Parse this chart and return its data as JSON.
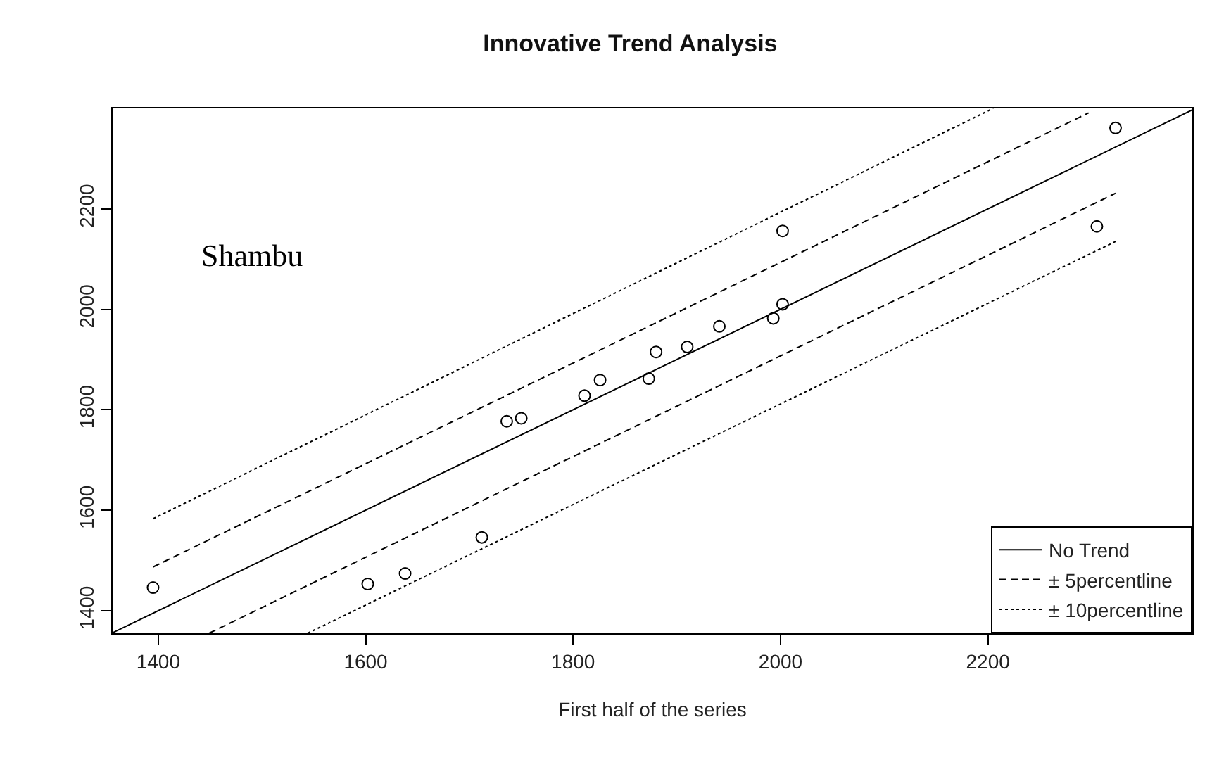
{
  "chart_data": {
    "type": "scatter",
    "title": "Innovative Trend Analysis",
    "xlabel": "First half of the series",
    "xlim": [
      1356,
      2397
    ],
    "ylim": [
      1355,
      2400
    ],
    "xticks": [
      1400,
      1600,
      1800,
      2000,
      2200
    ],
    "yticks": [
      1400,
      1600,
      1800,
      2000,
      2200
    ],
    "legend": "bottom right",
    "annotations": [
      "Shambu"
    ],
    "series": [
      {
        "marker": "circle",
        "color": "#000000",
        "x": [
          1395,
          1602,
          1638,
          1712,
          1736,
          1750,
          1811,
          1826,
          1873,
          1880,
          1910,
          1941,
          1993,
          2002,
          2002,
          2305,
          2323
        ],
        "values": [
          1446,
          1453,
          1474,
          1546,
          1777,
          1783,
          1828,
          1859,
          1862,
          1915,
          1925,
          1966,
          1982,
          2010,
          2156,
          2165,
          2361
        ]
      },
      {
        "type": "line",
        "name": "No Trend",
        "line_style": "solid",
        "color": "#000000",
        "x": [
          1356,
          2397
        ],
        "values": [
          1356,
          2397
        ]
      },
      {
        "type": "line",
        "name": "± 5percentline",
        "line_style": "dashed",
        "color": "#000000",
        "x": [
          1395,
          2297,
          null,
          1449,
          2323
        ],
        "values": [
          1487,
          2391,
          null,
          1355,
          2231
        ]
      },
      {
        "type": "line",
        "name": "± 10percentline",
        "line_style": "dotted",
        "color": "#000000",
        "x": [
          1395,
          2205,
          null,
          1544,
          2323
        ],
        "values": [
          1583,
          2400,
          null,
          1355,
          2135
        ]
      }
    ]
  }
}
